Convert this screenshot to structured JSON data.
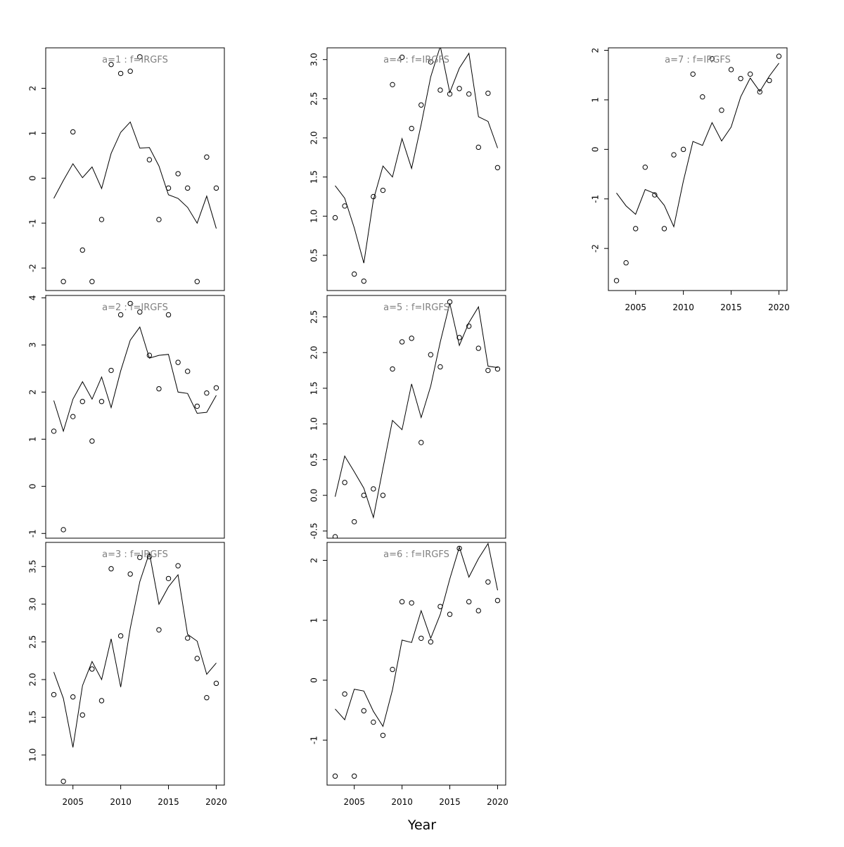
{
  "chart_data": {
    "type": "scatter",
    "xlabel": "Year",
    "panels": [
      {
        "title": "a=1  :  f=IRGFS",
        "ylim": [
          -2.5,
          2.9
        ],
        "yticks": [
          -2,
          -1,
          0,
          1,
          2
        ],
        "yticklabels": [
          "-2",
          "-1",
          "0",
          "1",
          "2"
        ],
        "xticks": [],
        "xticklabels": [],
        "observed": {
          "x": [
            2003,
            2004,
            2005,
            2006,
            2007,
            2008,
            2009,
            2010,
            2011,
            2012,
            2013,
            2014,
            2015,
            2016,
            2017,
            2018,
            2019,
            2020
          ],
          "y": [
            null,
            -2.3,
            1.03,
            -1.6,
            -2.3,
            -0.92,
            2.53,
            2.33,
            2.38,
            2.7,
            0.41,
            -0.92,
            -0.22,
            0.1,
            -0.22,
            -2.3,
            0.47,
            -0.22
          ]
        },
        "fitted": {
          "x": [
            2003,
            2004,
            2005,
            2006,
            2007,
            2008,
            2009,
            2010,
            2011,
            2012,
            2013,
            2014,
            2015,
            2016,
            2017,
            2018,
            2019,
            2020
          ],
          "y": [
            -0.45,
            -0.05,
            0.32,
            0.01,
            0.25,
            -0.23,
            0.55,
            1.02,
            1.25,
            0.67,
            0.68,
            0.27,
            -0.37,
            -0.45,
            -0.65,
            -1.0,
            -0.4,
            -1.12
          ]
        }
      },
      {
        "title": "a=2  :  f=IRGFS",
        "ylim": [
          -1.1,
          4.05
        ],
        "yticks": [
          -1,
          0,
          1,
          2,
          3,
          4
        ],
        "yticklabels": [
          "-1",
          "0",
          "1",
          "2",
          "3",
          "4"
        ],
        "xticks": [],
        "xticklabels": [],
        "observed": {
          "x": [
            2003,
            2004,
            2005,
            2006,
            2007,
            2008,
            2009,
            2010,
            2011,
            2012,
            2013,
            2014,
            2015,
            2016,
            2017,
            2018,
            2019,
            2020
          ],
          "y": [
            1.17,
            -0.92,
            1.48,
            1.8,
            0.96,
            1.8,
            2.46,
            3.64,
            3.88,
            3.7,
            2.78,
            2.07,
            3.64,
            2.63,
            2.44,
            1.7,
            1.98,
            2.09
          ]
        },
        "fitted": {
          "x": [
            2003,
            2004,
            2005,
            2006,
            2007,
            2008,
            2009,
            2010,
            2011,
            2012,
            2013,
            2014,
            2015,
            2016,
            2017,
            2018,
            2019,
            2020
          ],
          "y": [
            1.82,
            1.17,
            1.85,
            2.22,
            1.85,
            2.32,
            1.67,
            2.45,
            3.1,
            3.38,
            2.72,
            2.78,
            2.8,
            2.0,
            1.97,
            1.55,
            1.57,
            1.93
          ]
        }
      },
      {
        "title": "a=3  :  f=IRGFS",
        "ylim": [
          0.6,
          3.82
        ],
        "yticks": [
          1.0,
          1.5,
          2.0,
          2.5,
          3.0,
          3.5
        ],
        "yticklabels": [
          "1.0",
          "1.5",
          "2.0",
          "2.5",
          "3.0",
          "3.5"
        ],
        "xticks": [
          2005,
          2010,
          2015,
          2020
        ],
        "xticklabels": [
          "2005",
          "2010",
          "2015",
          "2020"
        ],
        "observed": {
          "x": [
            2003,
            2004,
            2005,
            2006,
            2007,
            2008,
            2009,
            2010,
            2011,
            2012,
            2013,
            2014,
            2015,
            2016,
            2017,
            2018,
            2019,
            2020
          ],
          "y": [
            1.8,
            0.65,
            1.77,
            1.53,
            2.14,
            1.72,
            3.47,
            2.58,
            3.4,
            3.62,
            3.63,
            2.66,
            3.34,
            3.51,
            2.55,
            2.28,
            1.76,
            1.95
          ]
        },
        "fitted": {
          "x": [
            2003,
            2004,
            2005,
            2006,
            2007,
            2008,
            2009,
            2010,
            2011,
            2012,
            2013,
            2014,
            2015,
            2016,
            2017,
            2018,
            2019,
            2020
          ],
          "y": [
            2.1,
            1.75,
            1.1,
            1.92,
            2.24,
            2.0,
            2.54,
            1.9,
            2.68,
            3.3,
            3.68,
            3.0,
            3.23,
            3.39,
            2.6,
            2.51,
            2.07,
            2.22
          ]
        }
      },
      {
        "title": "a=4  :  f=IRGFS",
        "ylim": [
          0.05,
          3.15
        ],
        "yticks": [
          0.5,
          1.0,
          1.5,
          2.0,
          2.5,
          3.0
        ],
        "yticklabels": [
          "0.5",
          "1.0",
          "1.5",
          "2.0",
          "2.5",
          "3.0"
        ],
        "xticks": [],
        "xticklabels": [],
        "observed": {
          "x": [
            2003,
            2004,
            2005,
            2006,
            2007,
            2008,
            2009,
            2010,
            2011,
            2012,
            2013,
            2014,
            2015,
            2016,
            2017,
            2018,
            2019,
            2020
          ],
          "y": [
            0.98,
            1.13,
            0.26,
            0.17,
            1.25,
            1.33,
            2.68,
            3.03,
            2.12,
            2.42,
            2.97,
            2.61,
            2.56,
            2.63,
            2.56,
            1.88,
            2.57,
            1.62
          ]
        },
        "fitted": {
          "x": [
            2003,
            2004,
            2005,
            2006,
            2007,
            2008,
            2009,
            2010,
            2011,
            2012,
            2013,
            2014,
            2015,
            2016,
            2017,
            2018,
            2019,
            2020
          ],
          "y": [
            1.39,
            1.23,
            0.85,
            0.4,
            1.21,
            1.64,
            1.5,
            1.99,
            1.61,
            2.17,
            2.78,
            3.17,
            2.58,
            2.89,
            3.08,
            2.27,
            2.21,
            1.87
          ]
        }
      },
      {
        "title": "a=5  :  f=IRGFS",
        "ylim": [
          -0.6,
          2.8
        ],
        "yticks": [
          -0.5,
          0.0,
          0.5,
          1.0,
          1.5,
          2.0,
          2.5
        ],
        "yticklabels": [
          "-0.5",
          "0.0",
          "0.5",
          "1.0",
          "1.5",
          "2.0",
          "2.5"
        ],
        "xticks": [],
        "xticklabels": [],
        "observed": {
          "x": [
            2003,
            2004,
            2005,
            2006,
            2007,
            2008,
            2009,
            2010,
            2011,
            2012,
            2013,
            2014,
            2015,
            2016,
            2017,
            2018,
            2019,
            2020
          ],
          "y": [
            -0.58,
            0.18,
            -0.37,
            0.0,
            0.09,
            0.0,
            1.77,
            2.15,
            2.2,
            0.74,
            1.97,
            1.8,
            2.71,
            2.21,
            2.37,
            2.06,
            1.75,
            1.77
          ]
        },
        "fitted": {
          "x": [
            2003,
            2004,
            2005,
            2006,
            2007,
            2008,
            2009,
            2010,
            2011,
            2012,
            2013,
            2014,
            2015,
            2016,
            2017,
            2018,
            2019,
            2020
          ],
          "y": [
            -0.02,
            0.55,
            0.33,
            0.1,
            -0.31,
            0.38,
            1.05,
            0.92,
            1.56,
            1.09,
            1.53,
            2.15,
            2.69,
            2.1,
            2.42,
            2.64,
            1.81,
            1.79
          ]
        }
      },
      {
        "title": "a=6  :  f=IRGFS",
        "ylim": [
          -1.75,
          2.3
        ],
        "yticks": [
          -1,
          0,
          1,
          2
        ],
        "yticklabels": [
          "-1",
          "0",
          "1",
          "2"
        ],
        "xticks": [
          2005,
          2010,
          2015,
          2020
        ],
        "xticklabels": [
          "2005",
          "2010",
          "2015",
          "2020"
        ],
        "observed": {
          "x": [
            2003,
            2004,
            2005,
            2006,
            2007,
            2008,
            2009,
            2010,
            2011,
            2012,
            2013,
            2014,
            2015,
            2016,
            2017,
            2018,
            2019,
            2020
          ],
          "y": [
            -1.6,
            -0.23,
            -1.6,
            -0.51,
            -0.7,
            -0.92,
            0.18,
            1.31,
            1.29,
            0.7,
            0.64,
            1.23,
            1.1,
            2.2,
            1.31,
            1.16,
            1.64,
            1.33
          ]
        },
        "fitted": {
          "x": [
            2003,
            2004,
            2005,
            2006,
            2007,
            2008,
            2009,
            2010,
            2011,
            2012,
            2013,
            2014,
            2015,
            2016,
            2017,
            2018,
            2019,
            2020
          ],
          "y": [
            -0.48,
            -0.66,
            -0.15,
            -0.18,
            -0.52,
            -0.77,
            -0.16,
            0.67,
            0.63,
            1.16,
            0.7,
            1.1,
            1.69,
            2.22,
            1.72,
            2.03,
            2.28,
            1.5
          ]
        }
      },
      {
        "title": "a=7  :  f=IRGFS",
        "ylim": [
          -2.85,
          2.05
        ],
        "yticks": [
          -2,
          -1,
          0,
          1,
          2
        ],
        "yticklabels": [
          "-2",
          "-1",
          "0",
          "1",
          "2"
        ],
        "xticks": [
          2005,
          2010,
          2015,
          2020
        ],
        "xticklabels": [
          "2005",
          "2010",
          "2015",
          "2020"
        ],
        "observed": {
          "x": [
            2003,
            2004,
            2005,
            2006,
            2007,
            2008,
            2009,
            2010,
            2011,
            2012,
            2013,
            2014,
            2015,
            2016,
            2017,
            2018,
            2019,
            2020
          ],
          "y": [
            -2.65,
            -2.29,
            -1.6,
            -0.36,
            -0.92,
            -1.6,
            -0.11,
            0.0,
            1.52,
            1.06,
            1.83,
            0.79,
            1.61,
            1.43,
            1.52,
            1.16,
            1.39,
            1.88
          ]
        },
        "fitted": {
          "x": [
            2003,
            2004,
            2005,
            2006,
            2007,
            2008,
            2009,
            2010,
            2011,
            2012,
            2013,
            2014,
            2015,
            2016,
            2017,
            2018,
            2019,
            2020
          ],
          "y": [
            -0.88,
            -1.14,
            -1.31,
            -0.81,
            -0.89,
            -1.13,
            -1.56,
            -0.64,
            0.16,
            0.08,
            0.54,
            0.17,
            0.45,
            1.06,
            1.44,
            1.17,
            1.48,
            1.74
          ]
        }
      }
    ]
  }
}
